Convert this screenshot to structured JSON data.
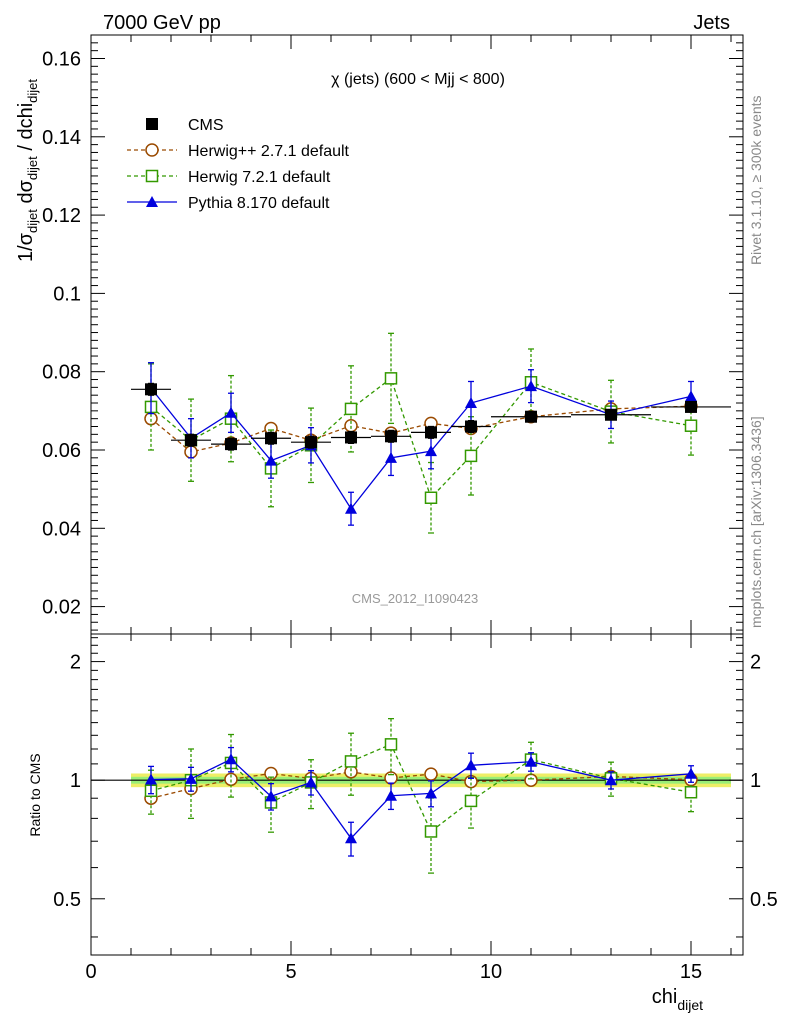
{
  "header": {
    "left": "7000 GeV pp",
    "right": "Jets"
  },
  "side_labels": {
    "rivet": "Rivet 3.1.10, ≥ 300k events",
    "mcplots": "mcplots.cern.ch [arXiv:1306.3436]"
  },
  "analysis_id": "CMS_2012_I1090423",
  "chart_data": [
    {
      "type": "scatter",
      "panel": "main",
      "title": "χ (jets) (600 < Mjj <  800)",
      "ylabel": "1/σ_dijet dσ_dijet / dchi_dijet",
      "ylim": [
        0.013,
        0.166
      ],
      "xlim": [
        0,
        16.3
      ],
      "y_ticks": [
        "0.02",
        "0.04",
        "0.06",
        "0.08",
        "0.1",
        "0.12",
        "0.14",
        "0.16"
      ],
      "legend_position": "top-left",
      "x_bins": [
        [
          1,
          2
        ],
        [
          2,
          3
        ],
        [
          3,
          4
        ],
        [
          4,
          5
        ],
        [
          5,
          6
        ],
        [
          6,
          7
        ],
        [
          7,
          8
        ],
        [
          8,
          9
        ],
        [
          9,
          10
        ],
        [
          10,
          12
        ],
        [
          12,
          14
        ],
        [
          14,
          16
        ]
      ],
      "x": [
        1.5,
        2.5,
        3.5,
        4.5,
        5.5,
        6.5,
        7.5,
        8.5,
        9.5,
        11,
        13,
        15
      ],
      "series": [
        {
          "name": "CMS",
          "color": "#000000",
          "marker": "filled-square",
          "values": [
            0.0755,
            0.0625,
            0.0615,
            0.063,
            0.062,
            0.0632,
            0.0635,
            0.0645,
            0.066,
            0.0685,
            0.069,
            0.071
          ],
          "errors": [
            0.0015,
            0.0015,
            0.0015,
            0.0015,
            0.0015,
            0.0015,
            0.0015,
            0.0015,
            0.0015,
            0.0012,
            0.0012,
            0.0012
          ]
        },
        {
          "name": "Herwig++ 2.7.1 default",
          "color": "#9a4a00",
          "marker": "open-circle",
          "values": [
            0.068,
            0.0595,
            0.0618,
            0.0655,
            0.0625,
            0.0662,
            0.0643,
            0.0668,
            0.0655,
            0.0685,
            0.0705,
            0.0712
          ],
          "errors": [
            0.0012,
            0.0012,
            0.0012,
            0.0012,
            0.0012,
            0.0012,
            0.0012,
            0.0012,
            0.0012,
            0.001,
            0.001,
            0.001
          ]
        },
        {
          "name": "Herwig 7.2.1 default",
          "color": "#339900",
          "marker": "open-square",
          "values": [
            0.071,
            0.0625,
            0.068,
            0.0553,
            0.0612,
            0.0705,
            0.0783,
            0.0478,
            0.0585,
            0.0773,
            0.0698,
            0.0662
          ],
          "errors": [
            0.011,
            0.0105,
            0.011,
            0.0098,
            0.0095,
            0.011,
            0.0115,
            0.009,
            0.01,
            0.0085,
            0.008,
            0.0075
          ]
        },
        {
          "name": "Pythia 8.170 default",
          "color": "#0000dd",
          "marker": "filled-triangle",
          "values": [
            0.0758,
            0.063,
            0.0695,
            0.0573,
            0.0612,
            0.045,
            0.058,
            0.0597,
            0.072,
            0.0763,
            0.069,
            0.0737
          ],
          "errors": [
            0.0065,
            0.005,
            0.005,
            0.0045,
            0.0045,
            0.0042,
            0.0045,
            0.0045,
            0.0055,
            0.0042,
            0.0035,
            0.0038
          ]
        }
      ]
    },
    {
      "type": "scatter",
      "panel": "ratio",
      "ylabel": "Ratio to CMS",
      "xlabel": "chi_dijet",
      "ylim": [
        0.36,
        2.35
      ],
      "yscale": "log",
      "xlim": [
        0,
        16.3
      ],
      "x_ticks": [
        "0",
        "5",
        "10",
        "15"
      ],
      "y_ticks": [
        "0.5",
        "1",
        "2"
      ],
      "reference_line": 1,
      "band_inner_color": "#99ee77",
      "band_outer_color": "#eeee66",
      "band_inner_halfwidth": 0.02,
      "band_outer_halfwidth": 0.04,
      "x": [
        1.5,
        2.5,
        3.5,
        4.5,
        5.5,
        6.5,
        7.5,
        8.5,
        9.5,
        11,
        13,
        15
      ],
      "series": [
        {
          "name": "Herwig++ 2.7.1 default",
          "color": "#9a4a00",
          "marker": "open-circle",
          "values": [
            0.9,
            0.952,
            1.005,
            1.04,
            1.01,
            1.05,
            1.013,
            1.036,
            0.992,
            1.0,
            1.022,
            1.003
          ]
        },
        {
          "name": "Herwig 7.2.1 default",
          "color": "#339900",
          "marker": "open-square",
          "values": [
            0.94,
            1.0,
            1.106,
            0.878,
            0.987,
            1.116,
            1.233,
            0.741,
            0.886,
            1.128,
            1.011,
            0.932
          ],
          "errors": [
            0.12,
            0.2,
            0.2,
            0.14,
            0.14,
            0.2,
            0.2,
            0.16,
            0.13,
            0.12,
            0.1,
            0.1
          ]
        },
        {
          "name": "Pythia 8.170 default",
          "color": "#0000dd",
          "marker": "filled-triangle",
          "values": [
            1.004,
            1.008,
            1.13,
            0.91,
            0.987,
            0.712,
            0.913,
            0.926,
            1.091,
            1.114,
            1.0,
            1.038
          ],
          "errors": [
            0.08,
            0.07,
            0.08,
            0.07,
            0.07,
            0.07,
            0.07,
            0.07,
            0.08,
            0.06,
            0.05,
            0.05
          ]
        }
      ]
    }
  ]
}
